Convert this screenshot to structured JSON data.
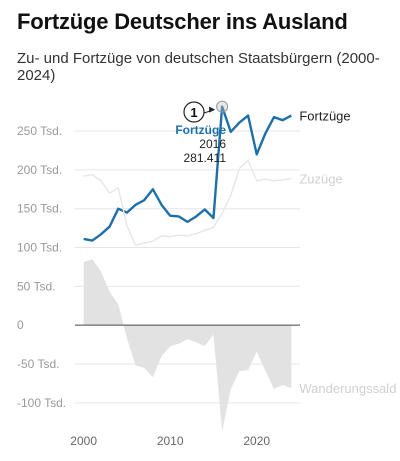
{
  "title": "Fortzüge Deutscher ins Ausland",
  "subtitle": "Zu- und Fortzüge von deutschen Staatsbürgern (2000-2024)",
  "chart_data": {
    "type": "line",
    "x": [
      2000,
      2001,
      2002,
      2003,
      2004,
      2005,
      2006,
      2007,
      2008,
      2009,
      2010,
      2011,
      2012,
      2013,
      2014,
      2015,
      2016,
      2017,
      2018,
      2019,
      2020,
      2021,
      2022,
      2023,
      2024
    ],
    "yticks": [
      {
        "value": 250000,
        "label": "250 Tsd."
      },
      {
        "value": 200000,
        "label": "200 Tsd."
      },
      {
        "value": 150000,
        "label": "150 Tsd."
      },
      {
        "value": 100000,
        "label": "100 Tsd."
      },
      {
        "value": 50000,
        "label": "50 Tsd."
      },
      {
        "value": 0,
        "label": "0"
      },
      {
        "value": -50000,
        "label": "-50 Tsd."
      },
      {
        "value": -100000,
        "label": "-100 Tsd."
      }
    ],
    "xticks": [
      {
        "value": 2000,
        "label": "2000"
      },
      {
        "value": 2010,
        "label": "2010"
      },
      {
        "value": 2020,
        "label": "2020"
      }
    ],
    "ylim": [
      -135000,
      290000
    ],
    "xlim": [
      1999,
      2025
    ],
    "grid": true,
    "series": [
      {
        "name": "Fortzüge",
        "color": "#1f6fa8",
        "kind": "line",
        "values": [
          111000,
          109000,
          117000,
          127000,
          150000,
          145000,
          155000,
          161000,
          175000,
          155000,
          141000,
          140000,
          133000,
          140000,
          149000,
          138000,
          281411,
          249000,
          261000,
          270000,
          220000,
          247000,
          268000,
          264000,
          270000
        ]
      },
      {
        "name": "Zuzüge",
        "color": "#e6e6e6",
        "kind": "line",
        "values": [
          192000,
          194000,
          186000,
          170000,
          177000,
          128000,
          103000,
          106000,
          108000,
          115000,
          114000,
          116000,
          115000,
          118000,
          122000,
          126000,
          144000,
          167000,
          202000,
          212000,
          186000,
          188000,
          186000,
          187000,
          189000
        ]
      },
      {
        "name": "Wanderungssald",
        "color": "#e2e2e2",
        "kind": "area",
        "values": [
          81000,
          85000,
          69000,
          43000,
          27000,
          -17000,
          -52000,
          -55000,
          -67000,
          -40000,
          -27000,
          -24000,
          -18000,
          -22000,
          -27000,
          -12000,
          -137000,
          -82000,
          -59000,
          -58000,
          -34000,
          -59000,
          -82000,
          -77000,
          -81000
        ]
      }
    ],
    "annotation": {
      "number": "1",
      "series": "Fortzüge",
      "year": "2016",
      "value": "281.411",
      "x": 2016,
      "y": 281411
    }
  }
}
